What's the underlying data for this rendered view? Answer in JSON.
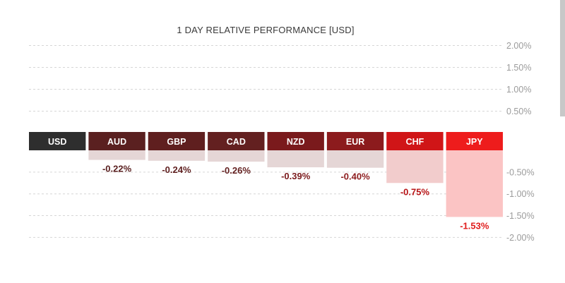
{
  "chart_data": {
    "type": "bar",
    "title": "1 DAY RELATIVE PERFORMANCE  [USD]",
    "base_currency": "USD",
    "categories": [
      "AUD",
      "GBP",
      "CAD",
      "NZD",
      "EUR",
      "CHF",
      "JPY"
    ],
    "values": [
      -0.22,
      -0.24,
      -0.26,
      -0.39,
      -0.4,
      -0.75,
      -1.53
    ],
    "value_labels": [
      "-0.22%",
      "-0.24%",
      "-0.26%",
      "-0.39%",
      "-0.40%",
      "-0.75%",
      "-1.53%"
    ],
    "y_ticks": [
      2.0,
      1.5,
      1.0,
      0.5,
      -0.5,
      -1.0,
      -1.5,
      -2.0
    ],
    "y_tick_labels": [
      "2.00%",
      "1.50%",
      "1.00%",
      "0.50%",
      "-0.50%",
      "-1.00%",
      "-1.50%",
      "-2.00%"
    ],
    "ylim": [
      -2.0,
      2.0
    ],
    "grid": true,
    "y_axis_position": "right",
    "colors": {
      "base_header": "#2e2e2e",
      "headers": [
        "#5a2020",
        "#5f1f1f",
        "#632020",
        "#7a1a1c",
        "#8c1b1d",
        "#d01517",
        "#ee1c1c"
      ],
      "bars": [
        "#e5d6d6",
        "#e5d6d6",
        "#e5d6d6",
        "#e5d6d6",
        "#e5d6d6",
        "#f2cccc",
        "#fbc4c4"
      ],
      "labels": [
        "#5a2020",
        "#5f1f1f",
        "#632020",
        "#7a1a1c",
        "#8c1b1d",
        "#b81416",
        "#e01b1b"
      ]
    }
  }
}
